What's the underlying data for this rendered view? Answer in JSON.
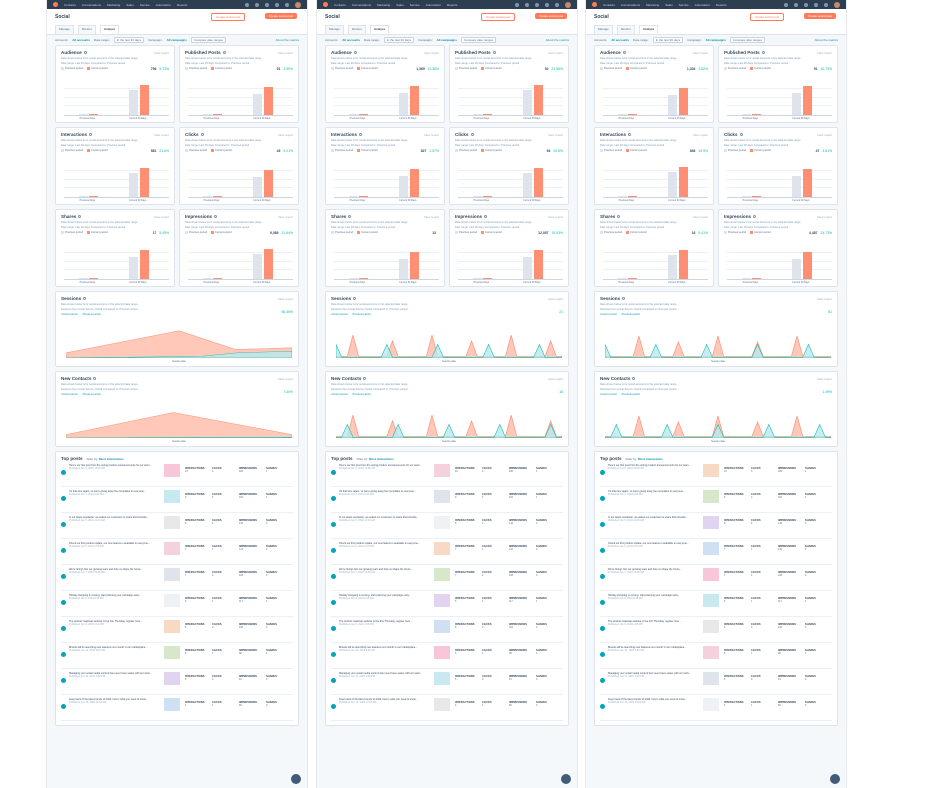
{
  "nav": {
    "items": [
      "Contacts",
      "Conversations",
      "Marketing",
      "Sales",
      "Service",
      "Automation",
      "Reports"
    ]
  },
  "header": {
    "title": "Social",
    "create_campaign": "Create social post",
    "compose": "Create social post",
    "tabs": [
      "Manage",
      "Monitor",
      "Analyze"
    ]
  },
  "filters": {
    "accounts_label": "Accounts:",
    "accounts_value": "All accounts",
    "range_label": "Date range:",
    "range_value": "In the last 30 days",
    "frequency_label": "Frequency:",
    "campaign_label": "Campaign:",
    "campaign_value": "All campaigns",
    "compare": "Compare date ranges",
    "about": "About the metrics"
  },
  "panels": [
    {
      "metrics": [
        {
          "title": "Audience",
          "value": "796",
          "change": "9.73%"
        },
        {
          "title": "Published Posts",
          "value": "91",
          "change": "3.59%"
        },
        {
          "title": "Interactions",
          "value": "581",
          "change": "21.6%"
        },
        {
          "title": "Clicks",
          "value": "43",
          "change": "9.21%"
        },
        {
          "title": "Shares",
          "value": "17",
          "change": "5.49%"
        },
        {
          "title": "Impressions",
          "value": "9,089",
          "change": "21.64%"
        }
      ],
      "sessions_value": "56.45%",
      "contacts_value": "7.40%"
    },
    {
      "metrics": [
        {
          "title": "Audience",
          "value": "1,369",
          "change": "11.38%"
        },
        {
          "title": "Published Posts",
          "value": "92",
          "change": "21.56%"
        },
        {
          "title": "Interactions",
          "value": "827",
          "change": "1.57%"
        },
        {
          "title": "Clicks",
          "value": "94",
          "change": "20.6%"
        },
        {
          "title": "Shares",
          "value": "13",
          "change": ""
        },
        {
          "title": "Impressions",
          "value": "12,057",
          "change": "19.53%"
        }
      ],
      "sessions_value": "21",
      "contacts_value": "18"
    },
    {
      "metrics": [
        {
          "title": "Audience",
          "value": "1,326",
          "change": "3.82%"
        },
        {
          "title": "Published Posts",
          "value": "91",
          "change": "10.73%"
        },
        {
          "title": "Interactions",
          "value": "846",
          "change": "10.9%"
        },
        {
          "title": "Clicks",
          "value": "47",
          "change": "4.61%"
        },
        {
          "title": "Shares",
          "value": "16",
          "change": "5.41%"
        },
        {
          "title": "Impressions",
          "value": "4,487",
          "change": "24.73%"
        }
      ],
      "sessions_value": "81",
      "contacts_value": "1.49%"
    }
  ],
  "labels": {
    "report_link": "View report",
    "prior_period": "Previous period",
    "current_period": "Current period",
    "sessions_title": "Sessions",
    "contacts_title": "New Contacts",
    "session_date": "Session date",
    "top_posts": "Top posts",
    "filter_by": "Filter by:",
    "filter_value": "Most interactions",
    "stat_interactions": "INTERACTIONS",
    "stat_clicks": "CLICKS",
    "stat_impressions": "IMPRESSIONS",
    "stat_shares": "SHARES",
    "metric_desc": "Data shown below is for social accounts in the selected date range",
    "compare_desc": "Date range: Last 30 days  Compared to: Previous period",
    "session_desc": "Sessions from social  Source: Social  Compared to: Previous period",
    "bar_left": "Previous Days",
    "bar_right": "Current 30 Days"
  },
  "posts": [
    {
      "text": "Here's our first post from the spring product announcements for our team...",
      "date": "Published Jun 3, 2024 10:00 AM",
      "i": "10",
      "c": "3",
      "m": "180",
      "s": "1"
    },
    {
      "text": "It's that time again, so we're giving away free templates to everyone...",
      "date": "Published Jun 4, 2024 9:00 AM",
      "i": "9",
      "c": "2",
      "m": "152",
      "s": "1"
    },
    {
      "text": "In our latest newsletter, we asked our customers to share their favorite...",
      "date": "Published Jun 5, 2024 11:00 AM",
      "i": "8",
      "c": "4",
      "m": "144",
      "s": "0"
    },
    {
      "text": "Check out this product update, our new feature is available to everyone...",
      "date": "Published Jun 6, 2024 2:00 PM",
      "i": "7",
      "c": "1",
      "m": "131",
      "s": "2"
    },
    {
      "text": "We're hiring! Join our growing team and help us shape the future...",
      "date": "Published Jun 7, 2024 10:30 AM",
      "i": "7",
      "c": "2",
      "m": "128",
      "s": "0"
    },
    {
      "text": "Holiday shopping is coming, start planning your campaign early...",
      "date": "Published Jun 8, 2024 9:15 AM",
      "i": "6",
      "c": "1",
      "m": "117",
      "s": "1"
    },
    {
      "text": "The product roadmap webinar is live this Thursday, register here...",
      "date": "Published Jun 9, 2024 1:00 PM",
      "i": "6",
      "c": "0",
      "m": "102",
      "s": "0"
    },
    {
      "text": "Brands will be launching new features next month in our marketplace...",
      "date": "Published Jun 10, 2024 8:45 AM",
      "i": "5",
      "c": "1",
      "m": "98",
      "s": "1"
    },
    {
      "text": "Managing your social media content has never been easier with our tools...",
      "date": "Published Jun 11, 2024 4:00 PM",
      "i": "5",
      "c": "0",
      "m": "91",
      "s": "0"
    },
    {
      "text": "Keep track of the latest trends of 2024, here's what you need to know...",
      "date": "Published Jun 12, 2024 10:00 AM",
      "i": "4",
      "c": "1",
      "m": "86",
      "s": "0"
    }
  ],
  "colors": {
    "accent": "#ff7a59",
    "bar_current": "#ff8f73",
    "bar_prior": "#dfe3eb",
    "teal": "#00bda5",
    "area_current": "#ffc8b8",
    "area_prior": "#b9e8ef"
  }
}
